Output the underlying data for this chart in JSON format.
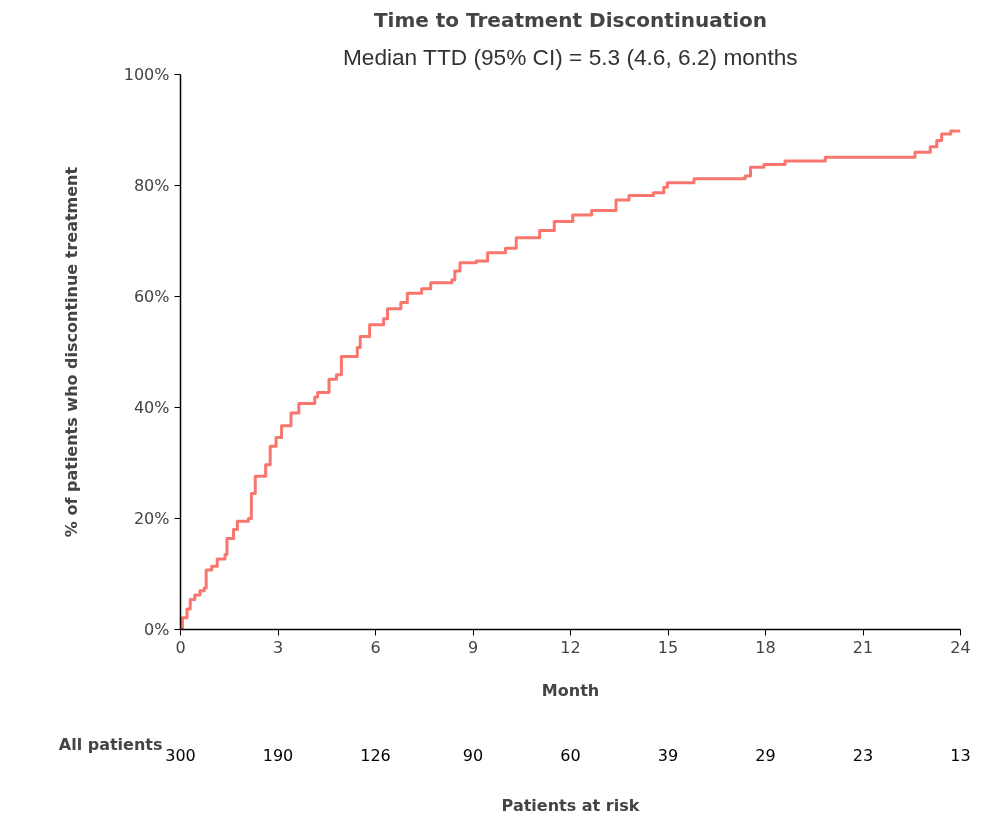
{
  "chart_data": {
    "type": "step",
    "title": "Time to Treatment Discontinuation",
    "subtitle": "Median TTD (95% CI) = 5.3 (4.6, 6.2) months",
    "xlabel": "Month",
    "ylabel": "% of patients who discontinue treatment",
    "series": [
      {
        "color": "#f8766d",
        "x": [
          0,
          0.06,
          0.2,
          0.3,
          0.44,
          0.6,
          0.73,
          0.79,
          0.96,
          1.13,
          1.37,
          1.43,
          1.63,
          1.75,
          2.09,
          2.18,
          2.3,
          2.62,
          2.76,
          2.94,
          3.11,
          3.4,
          3.64,
          4.13,
          4.22,
          4.57,
          4.8,
          4.95,
          5.44,
          5.53,
          5.82,
          6.25,
          6.37,
          6.78,
          6.98,
          7.42,
          7.7,
          8.35,
          8.44,
          8.6,
          9.1,
          9.45,
          10.0,
          10.33,
          11.05,
          11.5,
          12.07,
          12.65,
          13.4,
          13.8,
          14.55,
          14.87,
          14.98,
          15.8,
          17.37,
          17.54,
          17.95,
          18.6,
          19.84,
          22.6,
          23.07,
          23.27,
          23.42,
          23.7,
          24
        ],
        "values": [
          0,
          2.1,
          3.7,
          5.4,
          6.2,
          7.0,
          7.5,
          10.7,
          11.4,
          12.7,
          13.5,
          16.4,
          18.0,
          19.5,
          20.0,
          24.5,
          27.6,
          29.7,
          33.0,
          34.6,
          36.7,
          39.0,
          40.7,
          41.9,
          42.7,
          45.1,
          45.9,
          49.2,
          50.8,
          52.8,
          54.9,
          56.0,
          57.8,
          58.9,
          60.6,
          61.4,
          62.5,
          63.0,
          64.6,
          66.1,
          66.4,
          67.9,
          68.7,
          70.6,
          71.9,
          73.5,
          74.7,
          75.5,
          77.4,
          78.2,
          78.7,
          79.7,
          80.5,
          81.2,
          81.7,
          83.3,
          83.8,
          84.4,
          85.1,
          86.0,
          87.0,
          88.1,
          89.3,
          89.8,
          89.8
        ]
      }
    ],
    "xlim": [
      0,
      24
    ],
    "xticks": [
      0,
      3,
      6,
      9,
      12,
      15,
      18,
      21,
      24
    ],
    "ylim": [
      0,
      100
    ],
    "yticks": [
      {
        "value": 0,
        "label": "0%"
      },
      {
        "value": 20,
        "label": "20%"
      },
      {
        "value": 40,
        "label": "40%"
      },
      {
        "value": 60,
        "label": "60%"
      },
      {
        "value": 80,
        "label": "80%"
      },
      {
        "value": 100,
        "label": "100%"
      }
    ],
    "grid": false,
    "annotations": [
      "All patients",
      "Patients at risk",
      "300",
      "190",
      "126",
      "90",
      "60",
      "39",
      "29",
      "23",
      "13"
    ]
  }
}
